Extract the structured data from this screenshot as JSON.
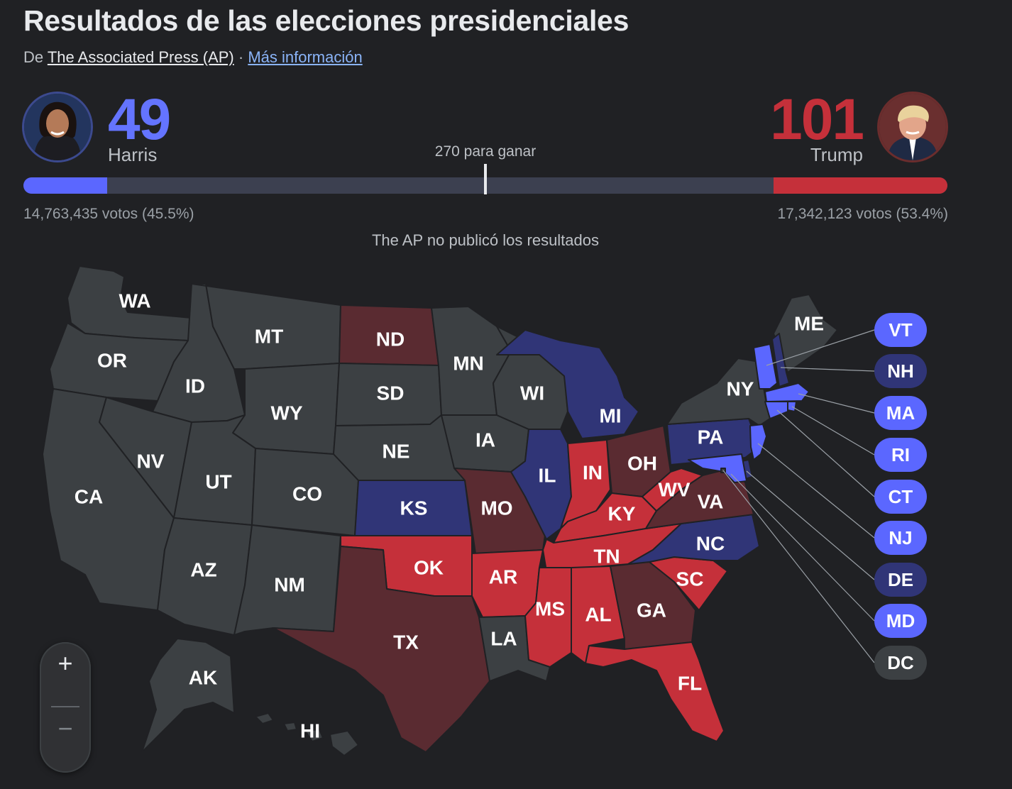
{
  "header": {
    "title": "Resultados de las elecciones presidenciales",
    "source_prefix": "De",
    "source_name": "The Associated Press (AP)",
    "source_sep": "·",
    "more_info": "Más información"
  },
  "candidates": {
    "harris": {
      "name": "Harris",
      "electoral_votes": "49",
      "votes_text": "14,763,435 votos (45.5%)",
      "color": "#6474ff"
    },
    "trump": {
      "name": "Trump",
      "electoral_votes": "101",
      "votes_text": "17,342,123 votos (53.4%)",
      "color": "#c5303a"
    }
  },
  "progress": {
    "to_win": "270 para ganar",
    "total_electoral_votes": 538,
    "harris_fraction": 0.091,
    "trump_fraction": 0.188
  },
  "notice": "The AP no publicó los resultados",
  "colors": {
    "no_result": "#3c4043",
    "dem_win": "#5b67ff",
    "dem_lead": "#303577",
    "rep_win": "#c5303a",
    "rep_lead": "#5a2b31",
    "border": "#202124"
  },
  "map": {
    "states": [
      {
        "code": "WA",
        "status": "no_result"
      },
      {
        "code": "OR",
        "status": "no_result"
      },
      {
        "code": "CA",
        "status": "no_result"
      },
      {
        "code": "ID",
        "status": "no_result"
      },
      {
        "code": "NV",
        "status": "no_result"
      },
      {
        "code": "MT",
        "status": "no_result"
      },
      {
        "code": "WY",
        "status": "no_result"
      },
      {
        "code": "UT",
        "status": "no_result"
      },
      {
        "code": "AZ",
        "status": "no_result"
      },
      {
        "code": "CO",
        "status": "no_result"
      },
      {
        "code": "NM",
        "status": "no_result"
      },
      {
        "code": "ND",
        "status": "rep_lead"
      },
      {
        "code": "SD",
        "status": "no_result"
      },
      {
        "code": "NE",
        "status": "no_result"
      },
      {
        "code": "KS",
        "status": "dem_lead"
      },
      {
        "code": "OK",
        "status": "rep_win"
      },
      {
        "code": "TX",
        "status": "rep_lead"
      },
      {
        "code": "MN",
        "status": "no_result"
      },
      {
        "code": "IA",
        "status": "no_result"
      },
      {
        "code": "MO",
        "status": "rep_lead"
      },
      {
        "code": "AR",
        "status": "rep_win"
      },
      {
        "code": "LA",
        "status": "no_result"
      },
      {
        "code": "WI",
        "status": "no_result"
      },
      {
        "code": "IL",
        "status": "dem_lead"
      },
      {
        "code": "MI",
        "status": "dem_lead"
      },
      {
        "code": "IN",
        "status": "rep_win"
      },
      {
        "code": "OH",
        "status": "rep_lead"
      },
      {
        "code": "KY",
        "status": "rep_win"
      },
      {
        "code": "TN",
        "status": "rep_win"
      },
      {
        "code": "MS",
        "status": "rep_win"
      },
      {
        "code": "AL",
        "status": "rep_win"
      },
      {
        "code": "GA",
        "status": "rep_lead"
      },
      {
        "code": "FL",
        "status": "rep_win"
      },
      {
        "code": "SC",
        "status": "rep_win"
      },
      {
        "code": "NC",
        "status": "dem_lead"
      },
      {
        "code": "VA",
        "status": "rep_lead"
      },
      {
        "code": "WV",
        "status": "rep_win"
      },
      {
        "code": "PA",
        "status": "dem_lead"
      },
      {
        "code": "NY",
        "status": "no_result"
      },
      {
        "code": "ME",
        "status": "no_result"
      },
      {
        "code": "AK",
        "status": "no_result"
      },
      {
        "code": "HI",
        "status": "no_result"
      }
    ],
    "small_states": [
      {
        "code": "VT",
        "status": "dem_win"
      },
      {
        "code": "NH",
        "status": "dem_lead"
      },
      {
        "code": "MA",
        "status": "dem_win"
      },
      {
        "code": "RI",
        "status": "dem_win"
      },
      {
        "code": "CT",
        "status": "dem_win"
      },
      {
        "code": "NJ",
        "status": "dem_win"
      },
      {
        "code": "DE",
        "status": "dem_lead"
      },
      {
        "code": "MD",
        "status": "dem_win"
      },
      {
        "code": "DC",
        "status": "no_result"
      }
    ]
  },
  "zoom": {
    "in_label": "+",
    "out_label": "−"
  }
}
